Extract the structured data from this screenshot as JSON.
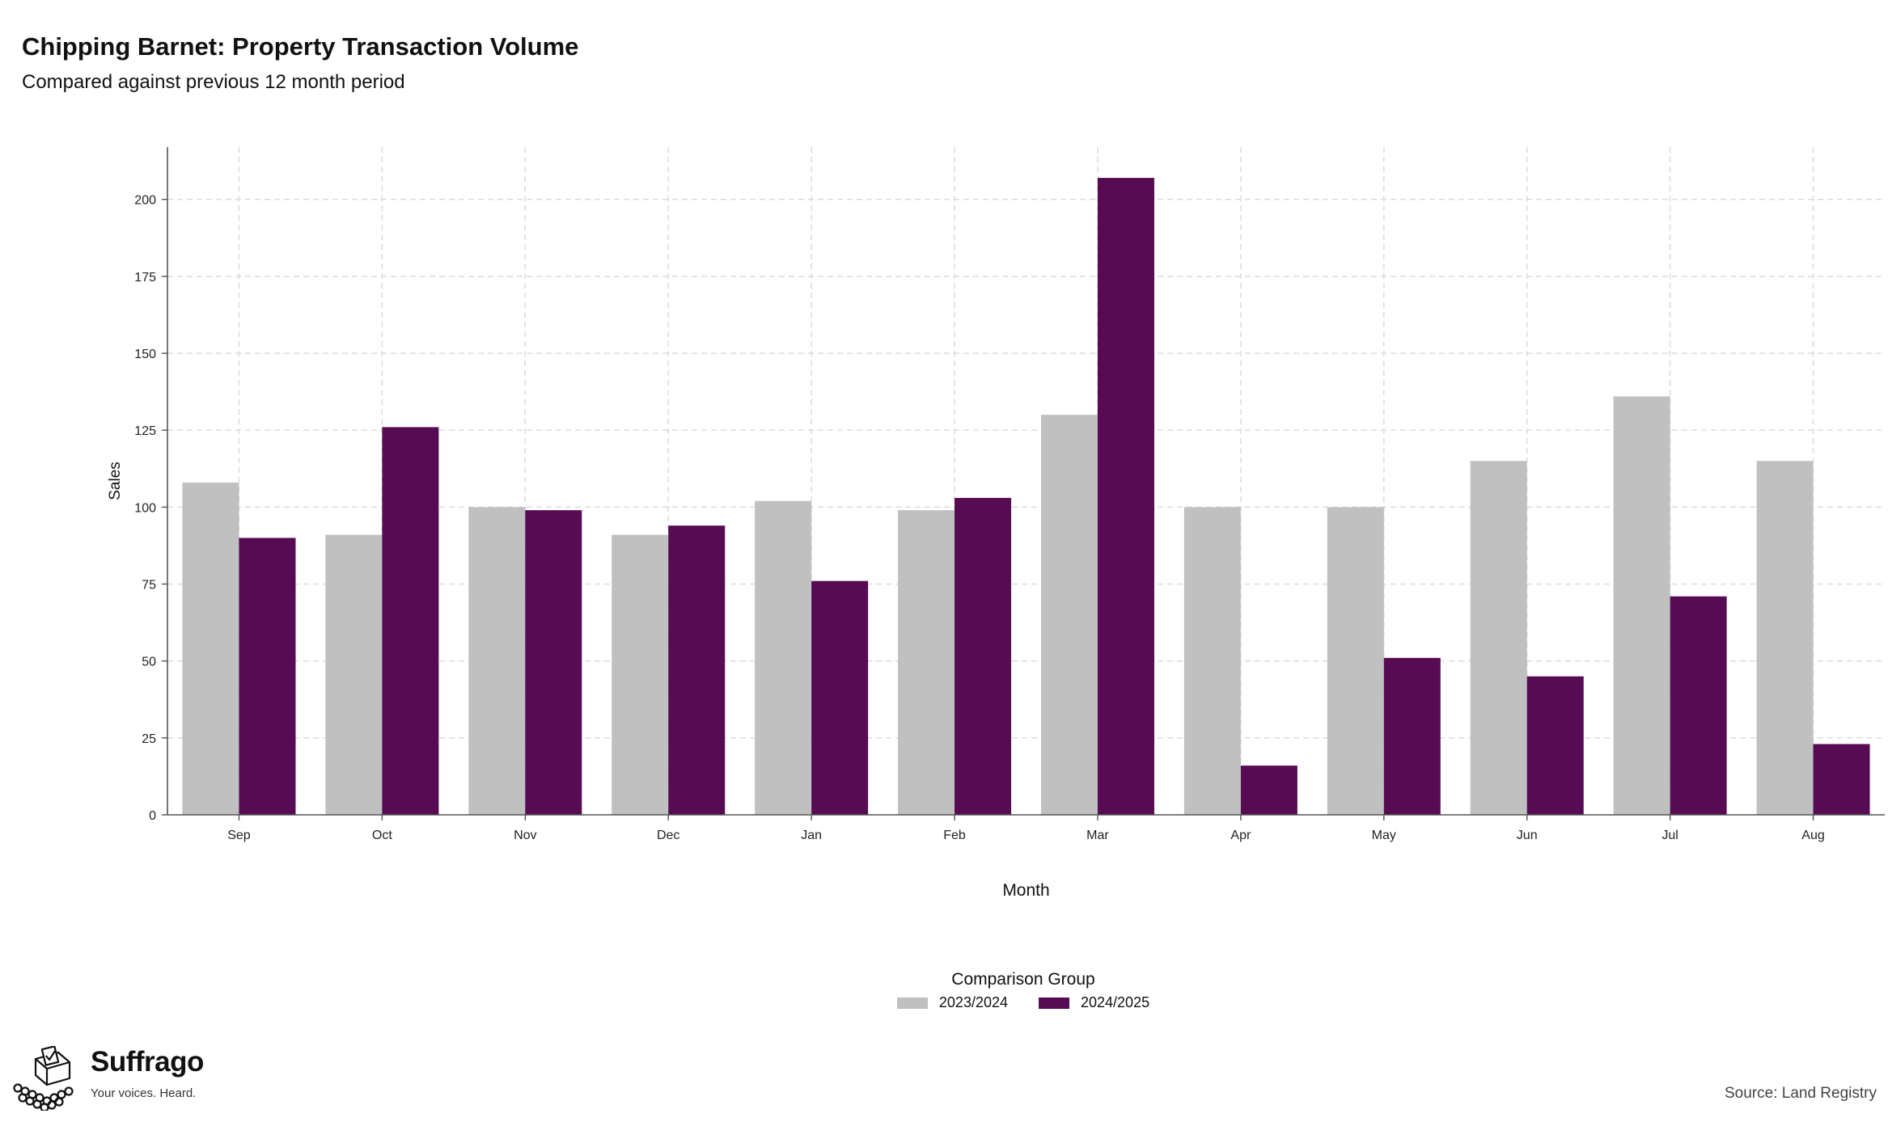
{
  "title": "Chipping Barnet: Property Transaction Volume",
  "subtitle": "Compared against previous 12 month period",
  "source": "Source: Land Registry",
  "brand": {
    "name": "Suffrago",
    "tagline": "Your voices. Heard."
  },
  "legend": {
    "title": "Comparison Group",
    "items": [
      {
        "label": "2023/2024",
        "color": "#c0c0c0"
      },
      {
        "label": "2024/2025",
        "color": "#560b53"
      }
    ]
  },
  "chart_data": {
    "type": "bar",
    "xlabel": "Month",
    "ylabel": "Sales",
    "ylim": [
      0,
      217
    ],
    "yticks": [
      0,
      25,
      50,
      75,
      100,
      125,
      150,
      175,
      200
    ],
    "grid": true,
    "legend_position": "bottom",
    "categories": [
      "Sep",
      "Oct",
      "Nov",
      "Dec",
      "Jan",
      "Feb",
      "Mar",
      "Apr",
      "May",
      "Jun",
      "Jul",
      "Aug"
    ],
    "series": [
      {
        "name": "2023/2024",
        "color": "#c0c0c0",
        "values": [
          108,
          91,
          100,
          91,
          102,
          99,
          130,
          100,
          100,
          115,
          136,
          115
        ]
      },
      {
        "name": "2024/2025",
        "color": "#560b53",
        "values": [
          90,
          126,
          99,
          94,
          76,
          103,
          207,
          16,
          51,
          45,
          71,
          23
        ]
      }
    ]
  }
}
